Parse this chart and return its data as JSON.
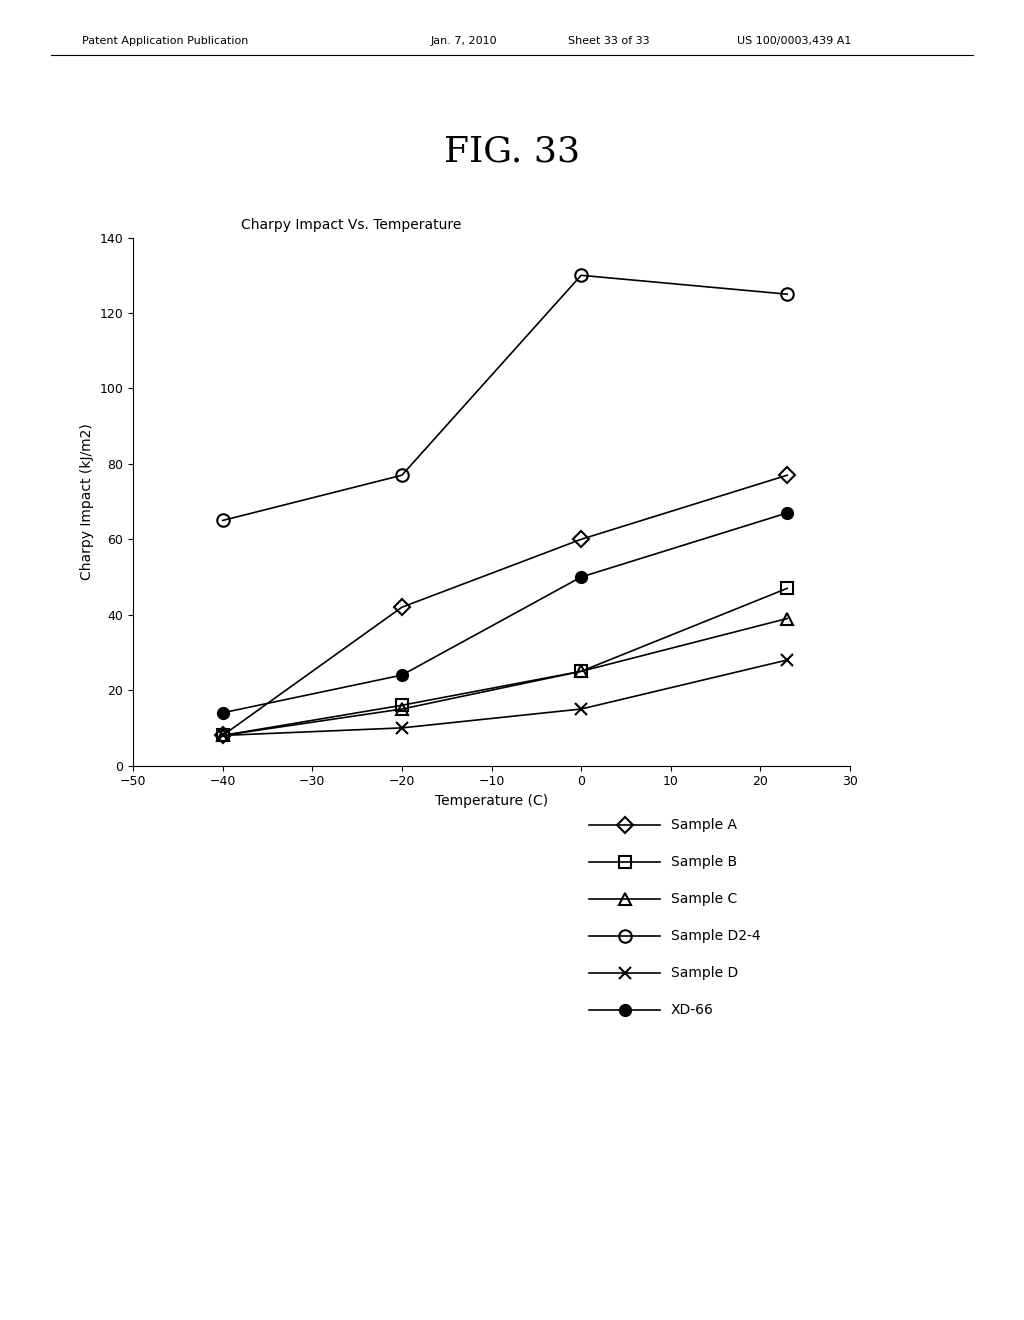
{
  "title_fig": "FIG. 33",
  "chart_title": "Charpy Impact Vs. Temperature",
  "xlabel": "Temperature (C)",
  "ylabel": "Charpy Impact (kJ/m2)",
  "xlim": [
    -50,
    30
  ],
  "ylim": [
    0,
    140
  ],
  "xticks": [
    -50,
    -40,
    -30,
    -20,
    -10,
    0,
    10,
    20,
    30
  ],
  "yticks": [
    0,
    20,
    40,
    60,
    80,
    100,
    120,
    140
  ],
  "series": [
    {
      "label": "Sample A",
      "x": [
        -40,
        -20,
        0,
        23
      ],
      "y": [
        8,
        42,
        60,
        77
      ],
      "marker": "D",
      "color": "#000000",
      "markersize": 8,
      "fillstyle": "none",
      "linewidth": 1.2
    },
    {
      "label": "Sample B",
      "x": [
        -40,
        -20,
        0,
        23
      ],
      "y": [
        8,
        16,
        25,
        47
      ],
      "marker": "s",
      "color": "#000000",
      "markersize": 8,
      "fillstyle": "none",
      "linewidth": 1.2
    },
    {
      "label": "Sample C",
      "x": [
        -40,
        -20,
        0,
        23
      ],
      "y": [
        8,
        15,
        25,
        39
      ],
      "marker": "^",
      "color": "#000000",
      "markersize": 8,
      "fillstyle": "none",
      "linewidth": 1.2
    },
    {
      "label": "Sample D2-4",
      "x": [
        -40,
        -20,
        0,
        23
      ],
      "y": [
        65,
        77,
        130,
        125
      ],
      "marker": "o",
      "color": "#000000",
      "markersize": 9,
      "fillstyle": "none",
      "linewidth": 1.2
    },
    {
      "label": "Sample D",
      "x": [
        -40,
        -20,
        0,
        23
      ],
      "y": [
        8,
        10,
        15,
        28
      ],
      "marker": "x",
      "color": "#000000",
      "markersize": 9,
      "fillstyle": "full",
      "linewidth": 1.2
    },
    {
      "label": "XD-66",
      "x": [
        -40,
        -20,
        0,
        23
      ],
      "y": [
        14,
        24,
        50,
        67
      ],
      "marker": "o",
      "color": "#000000",
      "markersize": 8,
      "fillstyle": "full",
      "linewidth": 1.2
    }
  ],
  "header_left": "Patent Application Publication",
  "header_date": "Jan. 7, 2010",
  "header_sheet": "Sheet 33 of 33",
  "header_patent": "US 100/0003,439 A1",
  "background_color": "#ffffff",
  "fig_title_fontsize": 26,
  "chart_title_fontsize": 10,
  "axis_label_fontsize": 10,
  "tick_fontsize": 9,
  "legend_fontsize": 10
}
